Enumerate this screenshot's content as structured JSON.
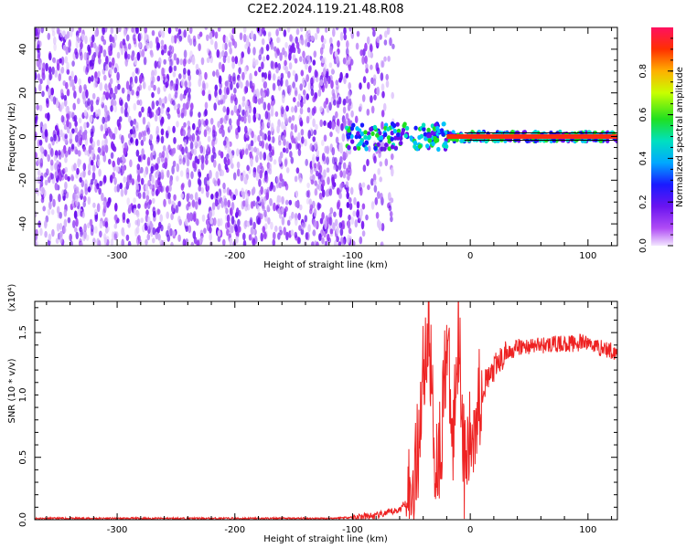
{
  "title": "C2E2.2024.119.21.48.R08",
  "chart_data": [
    {
      "type": "heatmap",
      "xlabel": "Height of straight line (km)",
      "ylabel": "Frequency (Hz)",
      "xlim": [
        -370,
        125
      ],
      "ylim": [
        -50,
        50
      ],
      "xticks": [
        -300,
        -200,
        -100,
        0,
        100
      ],
      "yticks": [
        -40,
        -20,
        0,
        20,
        40
      ],
      "colorbar": {
        "label": "Normalized spectral amplitude",
        "range": [
          0,
          1
        ],
        "ticks": [
          "0.0",
          "0.2",
          "0.4",
          "0.6",
          "0.8"
        ]
      },
      "features": {
        "noise_region_x": [
          -370,
          -65
        ],
        "signal_line_frequency": 0,
        "signal_start_x": -105,
        "strong_signal_start_x": -20
      }
    },
    {
      "type": "line",
      "xlabel": "Height of straight line (km)",
      "ylabel": "SNR (10 * v/v)",
      "multiplier": "(x10⁴)",
      "xlim": [
        -370,
        125
      ],
      "ylim": [
        0,
        1.75
      ],
      "xticks": [
        -300,
        -200,
        -100,
        0,
        100
      ],
      "yticks": [
        "0.0",
        "0.5",
        "1.0",
        "1.5"
      ],
      "color": "#ee2222",
      "x": [
        -370,
        -300,
        -200,
        -120,
        -100,
        -80,
        -60,
        -50,
        -45,
        -40,
        -35,
        -30,
        -25,
        -20,
        -15,
        -10,
        -5,
        0,
        5,
        10,
        20,
        30,
        40,
        60,
        80,
        100,
        110,
        125
      ],
      "y": [
        0.01,
        0.01,
        0.01,
        0.01,
        0.02,
        0.03,
        0.08,
        0.2,
        0.5,
        1.2,
        1.55,
        0.45,
        0.6,
        1.5,
        0.55,
        1.62,
        0.4,
        0.6,
        0.9,
        1.05,
        1.2,
        1.33,
        1.38,
        1.4,
        1.41,
        1.42,
        1.38,
        1.34
      ]
    }
  ]
}
